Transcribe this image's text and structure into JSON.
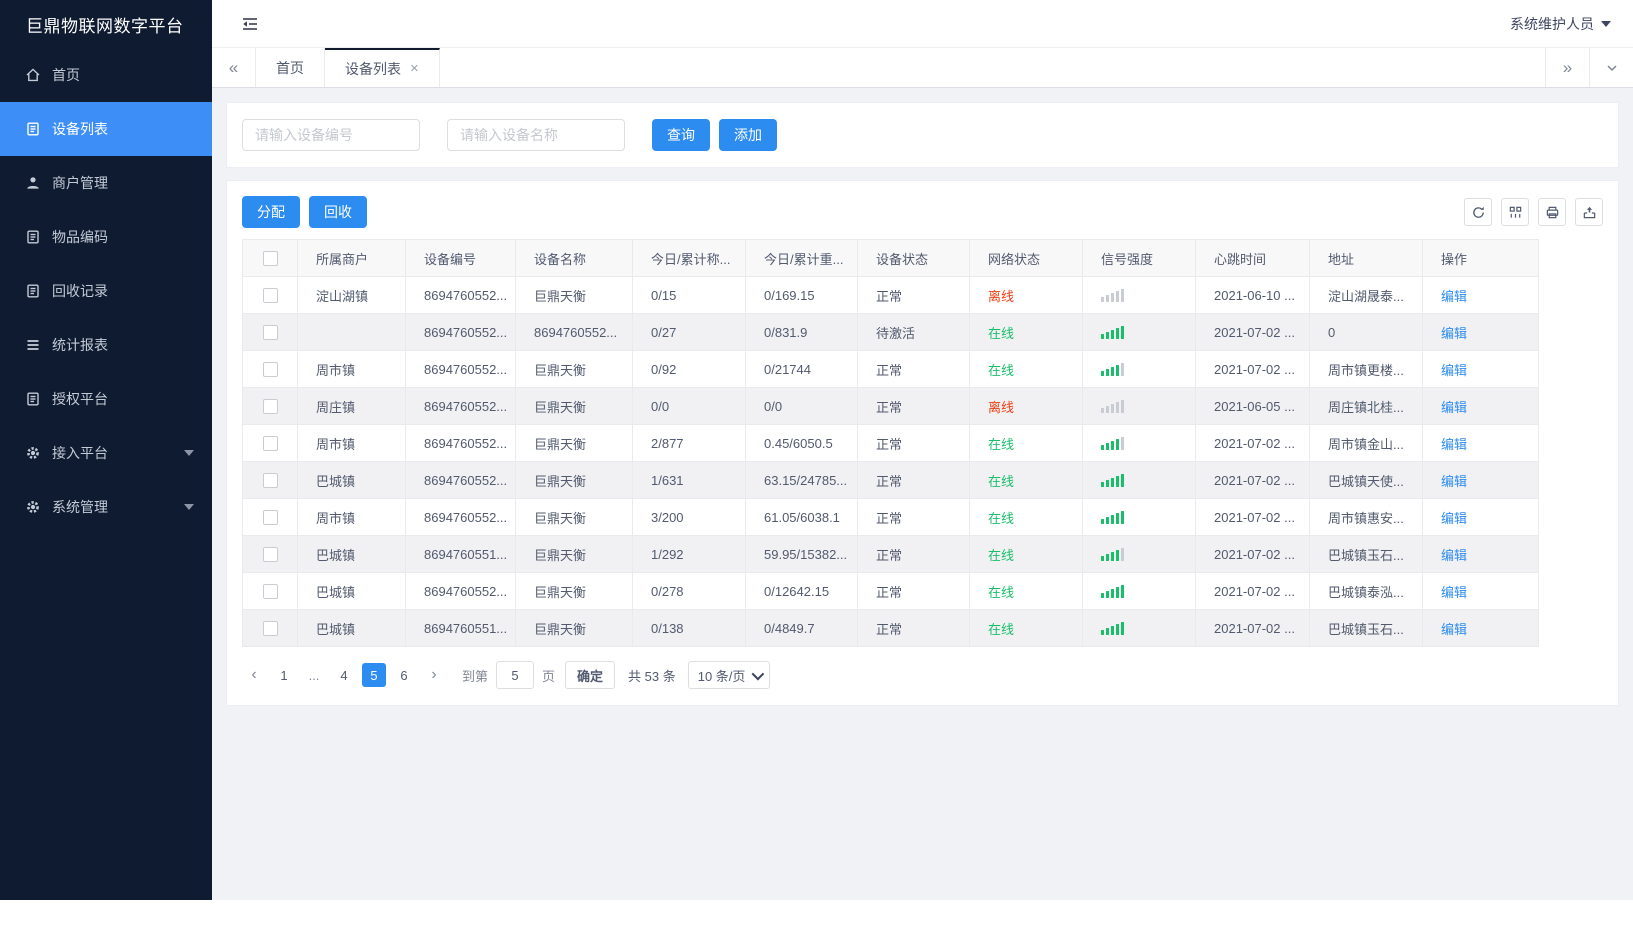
{
  "app": {
    "logo_title": "巨鼎物联网数字平台",
    "user_name": "系统维护人员"
  },
  "colors": {
    "primary": "#2d8cf0",
    "sidebar_active": "#3e8ef7",
    "online": "#19be6b",
    "offline": "#ed4014",
    "signal_on": "#19be6b",
    "signal_off": "#c9ccd2"
  },
  "icons": {
    "collapse_tabs": "«",
    "expand_tabs": "»",
    "tab_menu": "⌄",
    "tab_close": "×"
  },
  "sidebar": {
    "items": [
      {
        "label": "首页",
        "icon": "home-icon",
        "active": false,
        "caret": false
      },
      {
        "label": "设备列表",
        "icon": "clipboard-icon",
        "active": true,
        "caret": false
      },
      {
        "label": "商户管理",
        "icon": "user-icon",
        "active": false,
        "caret": false
      },
      {
        "label": "物品编码",
        "icon": "clipboard-icon",
        "active": false,
        "caret": false
      },
      {
        "label": "回收记录",
        "icon": "clipboard-icon",
        "active": false,
        "caret": false
      },
      {
        "label": "统计报表",
        "icon": "list-icon",
        "active": false,
        "caret": false
      },
      {
        "label": "授权平台",
        "icon": "clipboard-icon",
        "active": false,
        "caret": false
      },
      {
        "label": "接入平台",
        "icon": "gear-icon",
        "active": false,
        "caret": true
      },
      {
        "label": "系统管理",
        "icon": "gear-icon",
        "active": false,
        "caret": true
      }
    ]
  },
  "tabbar": {
    "tabs": [
      {
        "label": "首页",
        "active": false,
        "closable": false
      },
      {
        "label": "设备列表",
        "active": true,
        "closable": true
      }
    ]
  },
  "search": {
    "device_no_placeholder": "请输入设备编号",
    "device_name_placeholder": "请输入设备名称",
    "query_label": "查询",
    "add_label": "添加"
  },
  "toolbar": {
    "assign_label": "分配",
    "recycle_label": "回收",
    "icons": [
      "refresh-icon",
      "columns-icon",
      "print-icon",
      "export-icon"
    ]
  },
  "table": {
    "columns": [
      "所属商户",
      "设备编号",
      "设备名称",
      "今日/累计称...",
      "今日/累计重...",
      "设备状态",
      "网络状态",
      "信号强度",
      "心跳时间",
      "地址",
      "操作"
    ],
    "rows": [
      {
        "merchant": "淀山湖镇",
        "device_no": "8694760552...",
        "device_name": "巨鼎天衡",
        "today_count": "0/15",
        "today_weight": "0/169.15",
        "device_status": "正常",
        "network_status": "离线",
        "online": false,
        "signal_level": 0,
        "heartbeat": "2021-06-10 ...",
        "address": "淀山湖晟泰...",
        "action": "编辑"
      },
      {
        "merchant": "",
        "device_no": "8694760552...",
        "device_name": "8694760552...",
        "today_count": "0/27",
        "today_weight": "0/831.9",
        "device_status": "待激活",
        "network_status": "在线",
        "online": true,
        "signal_level": 5,
        "heartbeat": "2021-07-02 ...",
        "address": "0",
        "action": "编辑"
      },
      {
        "merchant": "周市镇",
        "device_no": "8694760552...",
        "device_name": "巨鼎天衡",
        "today_count": "0/92",
        "today_weight": "0/21744",
        "device_status": "正常",
        "network_status": "在线",
        "online": true,
        "signal_level": 4,
        "heartbeat": "2021-07-02 ...",
        "address": "周市镇更楼...",
        "action": "编辑"
      },
      {
        "merchant": "周庄镇",
        "device_no": "8694760552...",
        "device_name": "巨鼎天衡",
        "today_count": "0/0",
        "today_weight": "0/0",
        "device_status": "正常",
        "network_status": "离线",
        "online": false,
        "signal_level": 0,
        "heartbeat": "2021-06-05 ...",
        "address": "周庄镇北桂...",
        "action": "编辑"
      },
      {
        "merchant": "周市镇",
        "device_no": "8694760552...",
        "device_name": "巨鼎天衡",
        "today_count": "2/877",
        "today_weight": "0.45/6050.5",
        "device_status": "正常",
        "network_status": "在线",
        "online": true,
        "signal_level": 4,
        "heartbeat": "2021-07-02 ...",
        "address": "周市镇金山...",
        "action": "编辑"
      },
      {
        "merchant": "巴城镇",
        "device_no": "8694760552...",
        "device_name": "巨鼎天衡",
        "today_count": "1/631",
        "today_weight": "63.15/24785...",
        "device_status": "正常",
        "network_status": "在线",
        "online": true,
        "signal_level": 5,
        "heartbeat": "2021-07-02 ...",
        "address": "巴城镇天使...",
        "action": "编辑"
      },
      {
        "merchant": "周市镇",
        "device_no": "8694760552...",
        "device_name": "巨鼎天衡",
        "today_count": "3/200",
        "today_weight": "61.05/6038.1",
        "device_status": "正常",
        "network_status": "在线",
        "online": true,
        "signal_level": 5,
        "heartbeat": "2021-07-02 ...",
        "address": "周市镇惠安...",
        "action": "编辑"
      },
      {
        "merchant": "巴城镇",
        "device_no": "8694760551...",
        "device_name": "巨鼎天衡",
        "today_count": "1/292",
        "today_weight": "59.95/15382...",
        "device_status": "正常",
        "network_status": "在线",
        "online": true,
        "signal_level": 4,
        "heartbeat": "2021-07-02 ...",
        "address": "巴城镇玉石...",
        "action": "编辑"
      },
      {
        "merchant": "巴城镇",
        "device_no": "8694760552...",
        "device_name": "巨鼎天衡",
        "today_count": "0/278",
        "today_weight": "0/12642.15",
        "device_status": "正常",
        "network_status": "在线",
        "online": true,
        "signal_level": 5,
        "heartbeat": "2021-07-02 ...",
        "address": "巴城镇泰泓...",
        "action": "编辑"
      },
      {
        "merchant": "巴城镇",
        "device_no": "8694760551...",
        "device_name": "巨鼎天衡",
        "today_count": "0/138",
        "today_weight": "0/4849.7",
        "device_status": "正常",
        "network_status": "在线",
        "online": true,
        "signal_level": 5,
        "heartbeat": "2021-07-02 ...",
        "address": "巴城镇玉石...",
        "action": "编辑"
      }
    ]
  },
  "pagination": {
    "pages": [
      "1",
      "...",
      "4",
      "5",
      "6"
    ],
    "active_page": "5",
    "goto_label": "到第",
    "goto_value": "5",
    "page_unit": "页",
    "confirm_label": "确定",
    "total_label": "共 53 条",
    "page_size": "10 条/页"
  }
}
